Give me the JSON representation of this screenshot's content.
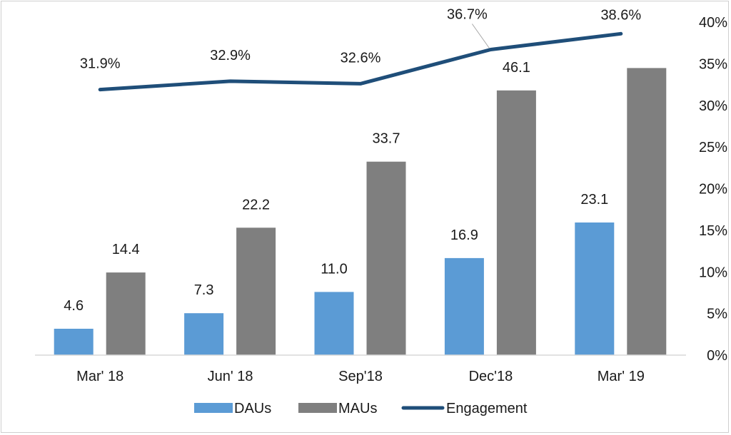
{
  "chart_data": {
    "type": "bar",
    "categories": [
      "Mar' 18",
      "Jun' 18",
      "Sep'18",
      "Dec'18",
      "Mar' 19"
    ],
    "series": [
      {
        "name": "DAUs",
        "kind": "bar",
        "color": "#5b9bd5",
        "values": [
          4.6,
          7.3,
          11.0,
          16.9,
          23.1
        ],
        "labels": [
          "4.6",
          "7.3",
          "11.0",
          "16.9",
          "23.1"
        ]
      },
      {
        "name": "MAUs",
        "kind": "bar",
        "color": "#7f7f7f",
        "values": [
          14.4,
          22.2,
          33.7,
          46.1,
          50.0
        ],
        "labels": [
          "14.4",
          "22.2",
          "33.7",
          "46.1",
          ""
        ]
      },
      {
        "name": "Engagement",
        "kind": "line",
        "axis": "right",
        "color": "#1f4e79",
        "values": [
          31.9,
          32.9,
          32.6,
          36.7,
          38.6
        ],
        "labels": [
          "31.9%",
          "32.9%",
          "32.6%",
          "36.7%",
          "38.6%"
        ]
      }
    ],
    "left_axis": {
      "ylim": [
        0,
        58
      ],
      "visible": false
    },
    "right_axis": {
      "ylim": [
        0,
        40
      ],
      "ticks": [
        0,
        5,
        10,
        15,
        20,
        25,
        30,
        35,
        40
      ],
      "tick_labels": [
        "0%",
        "5%",
        "10%",
        "15%",
        "20%",
        "25%",
        "30%",
        "35%",
        "40%"
      ]
    },
    "grid": false,
    "legend": {
      "position": "bottom",
      "entries": [
        "DAUs",
        "MAUs",
        "Engagement"
      ]
    }
  }
}
